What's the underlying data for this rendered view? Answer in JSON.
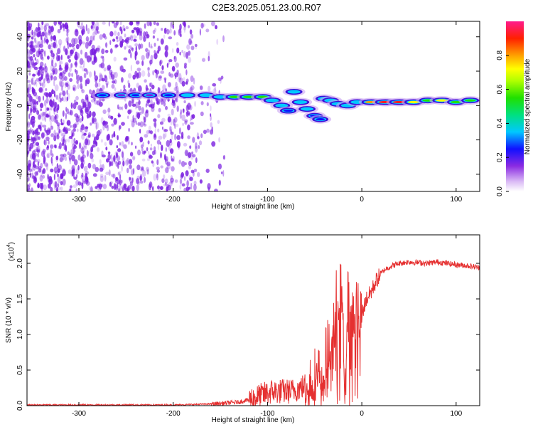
{
  "title": "C2E3.2025.051.23.00.R07",
  "colors": {
    "snr_line": "#e53030",
    "spec_dot": "#7a1fe0",
    "ridge_core": "#ff2020"
  },
  "chart_data": [
    {
      "type": "heatmap",
      "xlabel": "Height of straight line (km)",
      "ylabel": "Frequency (Hz)",
      "xlim": [
        -355,
        125
      ],
      "ylim": [
        -50,
        49
      ],
      "xticks": [
        -300,
        -200,
        -100,
        0,
        100
      ],
      "xtick_labels": [
        "-300",
        "-200",
        "-100",
        "0",
        "100"
      ],
      "yticks": [
        -40,
        -20,
        0,
        20,
        40
      ],
      "ytick_labels": [
        "-40",
        "-20",
        "0",
        "20",
        "40"
      ],
      "colorbar": {
        "label": "Normalized spectral amplitude",
        "range": [
          0,
          1
        ],
        "ticks": [
          0.0,
          0.2,
          0.4,
          0.6,
          0.8
        ],
        "tick_labels": [
          "0.0",
          "0.2",
          "0.4",
          "0.6",
          "0.8"
        ]
      },
      "ridge": [
        {
          "x": -275,
          "y": 6,
          "amp": 0.35
        },
        {
          "x": -255,
          "y": 6,
          "amp": 0.3
        },
        {
          "x": -240,
          "y": 6,
          "amp": 0.32
        },
        {
          "x": -225,
          "y": 6,
          "amp": 0.3
        },
        {
          "x": -205,
          "y": 6,
          "amp": 0.38
        },
        {
          "x": -185,
          "y": 6,
          "amp": 0.5
        },
        {
          "x": -165,
          "y": 6,
          "amp": 0.55
        },
        {
          "x": -150,
          "y": 5,
          "amp": 0.55
        },
        {
          "x": -135,
          "y": 5,
          "amp": 0.6
        },
        {
          "x": -120,
          "y": 5,
          "amp": 0.65
        },
        {
          "x": -105,
          "y": 5,
          "amp": 0.6
        },
        {
          "x": -95,
          "y": 3,
          "amp": 0.55
        },
        {
          "x": -85,
          "y": 0,
          "amp": 0.5
        },
        {
          "x": -78,
          "y": -3,
          "amp": 0.45
        },
        {
          "x": -72,
          "y": 8,
          "amp": 0.5
        },
        {
          "x": -65,
          "y": 2,
          "amp": 0.55
        },
        {
          "x": -58,
          "y": -2,
          "amp": 0.5
        },
        {
          "x": -50,
          "y": -6,
          "amp": 0.45
        },
        {
          "x": -44,
          "y": -8,
          "amp": 0.4
        },
        {
          "x": -40,
          "y": 4,
          "amp": 0.5
        },
        {
          "x": -33,
          "y": 3,
          "amp": 0.5
        },
        {
          "x": -25,
          "y": 1,
          "amp": 0.55
        },
        {
          "x": -15,
          "y": 0,
          "amp": 0.55
        },
        {
          "x": -5,
          "y": 2,
          "amp": 0.5
        },
        {
          "x": 10,
          "y": 2,
          "amp": 0.8
        },
        {
          "x": 25,
          "y": 2,
          "amp": 0.95
        },
        {
          "x": 40,
          "y": 2,
          "amp": 0.95
        },
        {
          "x": 55,
          "y": 2,
          "amp": 0.7
        },
        {
          "x": 70,
          "y": 3,
          "amp": 0.6
        },
        {
          "x": 85,
          "y": 3,
          "amp": 0.75
        },
        {
          "x": 100,
          "y": 2,
          "amp": 0.65
        },
        {
          "x": 115,
          "y": 3,
          "amp": 0.6
        }
      ]
    },
    {
      "type": "line",
      "xlabel": "Height of straight line (km)",
      "ylabel": "SNR (10 * v/v)",
      "yscale_label": "(x10^4)",
      "scale_base": "(x10",
      "scale_exp": "4",
      "scale_close": ")",
      "xlim": [
        -355,
        125
      ],
      "ylim": [
        0,
        2.4
      ],
      "xticks": [
        -300,
        -200,
        -100,
        0,
        100
      ],
      "xtick_labels": [
        "-300",
        "-200",
        "-100",
        "0",
        "100"
      ],
      "yticks": [
        0.0,
        0.5,
        1.0,
        1.5,
        2.0
      ],
      "ytick_labels": [
        "0.0",
        "0.5",
        "1.0",
        "1.5",
        "2.0"
      ],
      "series": [
        {
          "x": [
            -355,
            -300,
            -250,
            -200,
            -170,
            -150,
            -130,
            -115,
            -105,
            -95,
            -85,
            -75,
            -65,
            -58,
            -50,
            -45,
            -40,
            -35,
            -30,
            -27,
            -24,
            -20,
            -18,
            -15,
            -10,
            -5,
            0,
            5,
            10,
            15,
            20,
            25,
            30,
            35,
            40,
            50,
            60,
            70,
            80,
            90,
            100,
            110,
            125
          ],
          "y": [
            0.01,
            0.01,
            0.01,
            0.01,
            0.02,
            0.03,
            0.05,
            0.1,
            0.15,
            0.2,
            0.2,
            0.2,
            0.25,
            0.3,
            0.4,
            0.5,
            0.6,
            0.8,
            1.1,
            1.5,
            1.6,
            1.5,
            0.15,
            1.6,
            1.4,
            1.3,
            1.3,
            1.5,
            1.6,
            1.75,
            1.85,
            1.92,
            1.95,
            1.98,
            2.0,
            2.02,
            2.01,
            2.0,
            2.02,
            2.0,
            1.98,
            1.97,
            1.94
          ]
        }
      ]
    }
  ]
}
